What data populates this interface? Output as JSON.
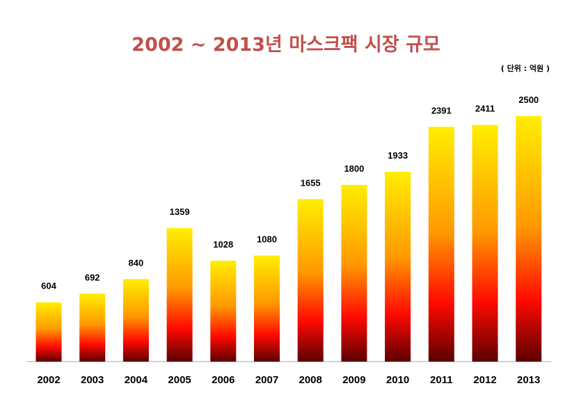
{
  "chart_data": {
    "type": "bar",
    "title": "2002 ~ 2013년 마스크팩 시장 규모",
    "unit_label": "( 단위 : 억원 )",
    "categories": [
      "2002",
      "2003",
      "2004",
      "2005",
      "2006",
      "2007",
      "2008",
      "2009",
      "2010",
      "2011",
      "2012",
      "2013"
    ],
    "values": [
      604,
      692,
      840,
      1359,
      1028,
      1080,
      1655,
      1800,
      1933,
      2391,
      2411,
      2500
    ],
    "xlabel": "",
    "ylabel": "",
    "grid": false,
    "legend": "none",
    "colors": {
      "gradient_top": "#ffee00",
      "gradient_mid": "#ff9900",
      "gradient_red": "#ff0a00",
      "gradient_bottom": "#5a0000",
      "title": "#c0504d",
      "axis": "#a6a6a6"
    }
  }
}
